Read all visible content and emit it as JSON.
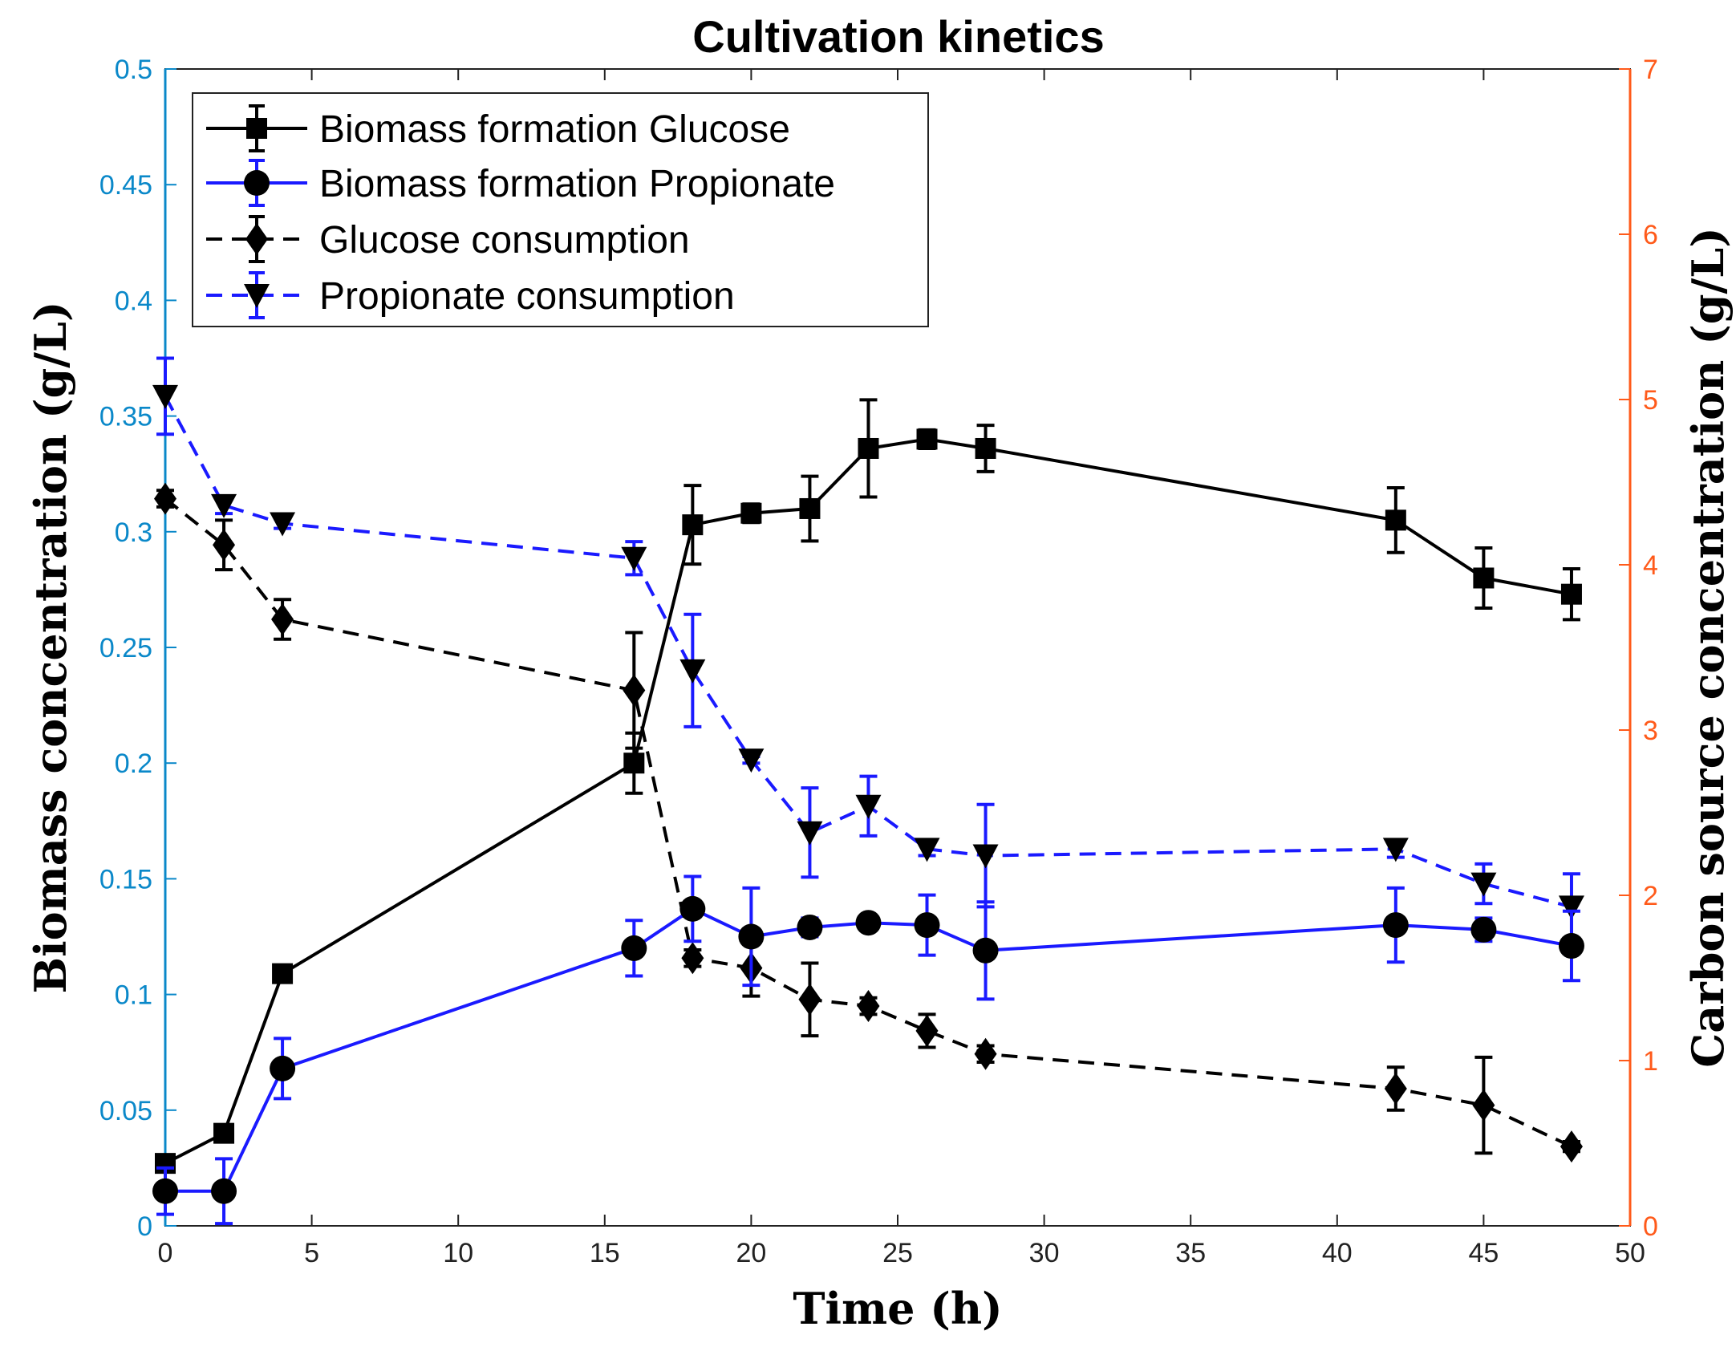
{
  "chart_data": {
    "type": "line",
    "title": "Cultivation kinetics",
    "xlabel": "Time (h)",
    "ylabel_left": "Biomass concentration (g/L)",
    "ylabel_right": "Carbon source concentration (g/L)",
    "xlim": [
      0,
      50
    ],
    "ylim_left": [
      0,
      0.5
    ],
    "ylim_right": [
      0,
      7
    ],
    "x_ticks": [
      "0",
      "5",
      "10",
      "15",
      "20",
      "25",
      "30",
      "35",
      "40",
      "45",
      "50"
    ],
    "y_left_ticks": [
      "0",
      "0.05",
      "0.1",
      "0.15",
      "0.2",
      "0.25",
      "0.3",
      "0.35",
      "0.4",
      "0.45",
      "0.5"
    ],
    "y_right_ticks": [
      "0",
      "1",
      "2",
      "3",
      "4",
      "5",
      "6",
      "7"
    ],
    "left_axis_color": "#0a88c9",
    "right_axis_color": "#ff5a1a",
    "grid": false,
    "legend_position": "top-left",
    "series": [
      {
        "name": "Biomass formation Glucose",
        "axis": "left",
        "color": "#000000",
        "line_style": "solid",
        "marker": "square",
        "x": [
          0,
          2,
          4,
          16,
          18,
          20,
          22,
          24,
          26,
          28,
          42,
          45,
          48
        ],
        "y": [
          0.027,
          0.04,
          0.109,
          0.2,
          0.303,
          0.308,
          0.31,
          0.336,
          0.34,
          0.336,
          0.305,
          0.28,
          0.273
        ],
        "err": [
          0.003,
          0.003,
          0.003,
          0.013,
          0.017,
          0.004,
          0.014,
          0.021,
          0.004,
          0.01,
          0.014,
          0.013,
          0.011
        ]
      },
      {
        "name": "Biomass formation Propionate",
        "axis": "left",
        "color": "#1a1aff",
        "line_style": "solid",
        "marker": "circle",
        "x": [
          0,
          2,
          4,
          16,
          18,
          20,
          22,
          24,
          26,
          28,
          42,
          45,
          48
        ],
        "y": [
          0.015,
          0.015,
          0.068,
          0.12,
          0.137,
          0.125,
          0.129,
          0.131,
          0.13,
          0.119,
          0.13,
          0.128,
          0.121
        ],
        "err": [
          0.01,
          0.014,
          0.013,
          0.012,
          0.014,
          0.021,
          0.004,
          0.003,
          0.013,
          0.021,
          0.016,
          0.005,
          0.015
        ]
      },
      {
        "name": "Glucose consumption",
        "axis": "right",
        "color": "#000000",
        "line_style": "dashed",
        "marker": "diamond",
        "x": [
          0,
          2,
          4,
          16,
          18,
          20,
          22,
          24,
          26,
          28,
          42,
          45,
          48
        ],
        "y": [
          4.4,
          4.12,
          3.67,
          3.24,
          1.62,
          1.56,
          1.37,
          1.33,
          1.18,
          1.04,
          0.83,
          0.73,
          0.48
        ],
        "err": [
          0.05,
          0.15,
          0.12,
          0.35,
          0.05,
          0.17,
          0.22,
          0.05,
          0.1,
          0.05,
          0.13,
          0.29,
          0.03
        ]
      },
      {
        "name": "Propionate consumption",
        "axis": "right",
        "color": "#1a1aff",
        "line_style": "dashed",
        "marker": "triangle-down",
        "x": [
          0,
          2,
          4,
          16,
          18,
          20,
          22,
          24,
          26,
          28,
          42,
          45,
          48
        ],
        "y": [
          5.02,
          4.36,
          4.25,
          4.04,
          3.36,
          2.82,
          2.38,
          2.54,
          2.28,
          2.24,
          2.28,
          2.07,
          1.93
        ],
        "err": [
          0.23,
          0.05,
          0.03,
          0.1,
          0.34,
          0.02,
          0.27,
          0.18,
          0.04,
          0.31,
          0.05,
          0.12,
          0.2
        ]
      }
    ]
  }
}
